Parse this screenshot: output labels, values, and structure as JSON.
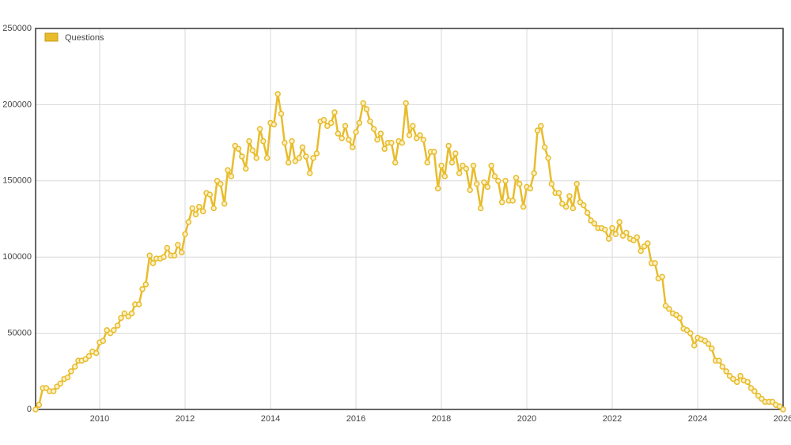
{
  "chart_data": {
    "type": "line",
    "x": [
      2008.5,
      2008.58,
      2008.67,
      2008.75,
      2008.83,
      2008.92,
      2009,
      2009.08,
      2009.17,
      2009.25,
      2009.33,
      2009.42,
      2009.5,
      2009.58,
      2009.67,
      2009.75,
      2009.83,
      2009.92,
      2010,
      2010.08,
      2010.17,
      2010.25,
      2010.33,
      2010.42,
      2010.5,
      2010.58,
      2010.67,
      2010.75,
      2010.83,
      2010.92,
      2011,
      2011.08,
      2011.17,
      2011.25,
      2011.33,
      2011.42,
      2011.5,
      2011.58,
      2011.67,
      2011.75,
      2011.83,
      2011.92,
      2012,
      2012.08,
      2012.17,
      2012.25,
      2012.33,
      2012.42,
      2012.5,
      2012.58,
      2012.67,
      2012.75,
      2012.83,
      2012.92,
      2013,
      2013.08,
      2013.17,
      2013.25,
      2013.33,
      2013.42,
      2013.5,
      2013.58,
      2013.67,
      2013.75,
      2013.83,
      2013.92,
      2014,
      2014.08,
      2014.17,
      2014.25,
      2014.33,
      2014.42,
      2014.5,
      2014.58,
      2014.67,
      2014.75,
      2014.83,
      2014.92,
      2015,
      2015.08,
      2015.17,
      2015.25,
      2015.33,
      2015.42,
      2015.5,
      2015.58,
      2015.67,
      2015.75,
      2015.83,
      2015.92,
      2016,
      2016.08,
      2016.17,
      2016.25,
      2016.33,
      2016.42,
      2016.5,
      2016.58,
      2016.67,
      2016.75,
      2016.83,
      2016.92,
      2017,
      2017.08,
      2017.17,
      2017.25,
      2017.33,
      2017.42,
      2017.5,
      2017.58,
      2017.67,
      2017.75,
      2017.83,
      2017.92,
      2018,
      2018.08,
      2018.17,
      2018.25,
      2018.33,
      2018.42,
      2018.5,
      2018.58,
      2018.67,
      2018.75,
      2018.83,
      2018.92,
      2019,
      2019.08,
      2019.17,
      2019.25,
      2019.33,
      2019.42,
      2019.5,
      2019.58,
      2019.67,
      2019.75,
      2019.83,
      2019.92,
      2020,
      2020.08,
      2020.17,
      2020.25,
      2020.33,
      2020.42,
      2020.5,
      2020.58,
      2020.67,
      2020.75,
      2020.83,
      2020.92,
      2021,
      2021.08,
      2021.17,
      2021.25,
      2021.33,
      2021.42,
      2021.5,
      2021.58,
      2021.67,
      2021.75,
      2021.83,
      2021.92,
      2022,
      2022.08,
      2022.17,
      2022.25,
      2022.33,
      2022.42,
      2022.5,
      2022.58,
      2022.67,
      2022.75,
      2022.83,
      2022.92,
      2023,
      2023.08,
      2023.17,
      2023.25,
      2023.33,
      2023.42,
      2023.5,
      2023.58,
      2023.67,
      2023.75,
      2023.83,
      2023.92,
      2024,
      2024.08,
      2024.17,
      2024.25,
      2024.33,
      2024.42,
      2024.5,
      2024.58,
      2024.67,
      2024.75,
      2024.83,
      2024.92,
      2025,
      2025.08,
      2025.17,
      2025.25,
      2025.33,
      2025.42,
      2025.5,
      2025.58,
      2025.67,
      2025.75,
      2025.83,
      2025.92,
      2026
    ],
    "series": [
      {
        "name": "Questions",
        "color": "#e8bc2c",
        "values": [
          0,
          3000,
          14000,
          14000,
          12000,
          12000,
          15000,
          17000,
          20000,
          21000,
          25000,
          28000,
          32000,
          32000,
          33000,
          35000,
          38000,
          37000,
          44000,
          45000,
          52000,
          50000,
          52000,
          55000,
          60000,
          63000,
          61000,
          63000,
          69000,
          69000,
          79000,
          82000,
          101000,
          96000,
          99000,
          99000,
          100000,
          106000,
          101000,
          101000,
          108000,
          103000,
          115000,
          123000,
          132000,
          128000,
          133000,
          130000,
          142000,
          141000,
          132000,
          150000,
          148000,
          135000,
          157000,
          153000,
          173000,
          171000,
          166000,
          158000,
          176000,
          170000,
          165000,
          184000,
          176000,
          165000,
          188000,
          187000,
          207000,
          194000,
          175000,
          162000,
          176000,
          163000,
          165000,
          172000,
          166000,
          155000,
          165000,
          168000,
          189000,
          190000,
          186000,
          188000,
          195000,
          181000,
          178000,
          186000,
          177000,
          172000,
          182000,
          188000,
          201000,
          197000,
          189000,
          184000,
          177000,
          181000,
          171000,
          175000,
          175000,
          162000,
          176000,
          175000,
          201000,
          180000,
          186000,
          178000,
          180000,
          177000,
          162000,
          169000,
          169000,
          145000,
          160000,
          153000,
          173000,
          162000,
          168000,
          155000,
          160000,
          158000,
          144000,
          160000,
          148000,
          132000,
          149000,
          146000,
          160000,
          153000,
          150000,
          136000,
          150000,
          137000,
          137000,
          152000,
          148000,
          133000,
          146000,
          145000,
          155000,
          183000,
          186000,
          172000,
          165000,
          148000,
          142000,
          142000,
          135000,
          133000,
          140000,
          132000,
          148000,
          136000,
          134000,
          129000,
          124000,
          122000,
          119000,
          119000,
          118000,
          112000,
          119000,
          115000,
          123000,
          114000,
          116000,
          112000,
          111000,
          113000,
          104000,
          107000,
          109000,
          96000,
          96000,
          86000,
          87000,
          68000,
          66000,
          63000,
          62000,
          60000,
          53000,
          52000,
          50000,
          42000,
          47000,
          46000,
          45000,
          43000,
          40000,
          32000,
          32000,
          28000,
          25000,
          22000,
          20000,
          18000,
          22000,
          19000,
          18000,
          14000,
          12000,
          9000,
          7000,
          5000,
          5000,
          5000,
          3000,
          2000,
          0
        ]
      }
    ],
    "xlim": [
      2008.5,
      2026
    ],
    "xticks": [
      2010,
      2012,
      2014,
      2016,
      2018,
      2020,
      2022,
      2024,
      2026
    ],
    "ylim": [
      0,
      250000
    ],
    "yticks": [
      0,
      50000,
      100000,
      150000,
      200000,
      250000
    ],
    "grid": true,
    "legend": "top-left"
  }
}
